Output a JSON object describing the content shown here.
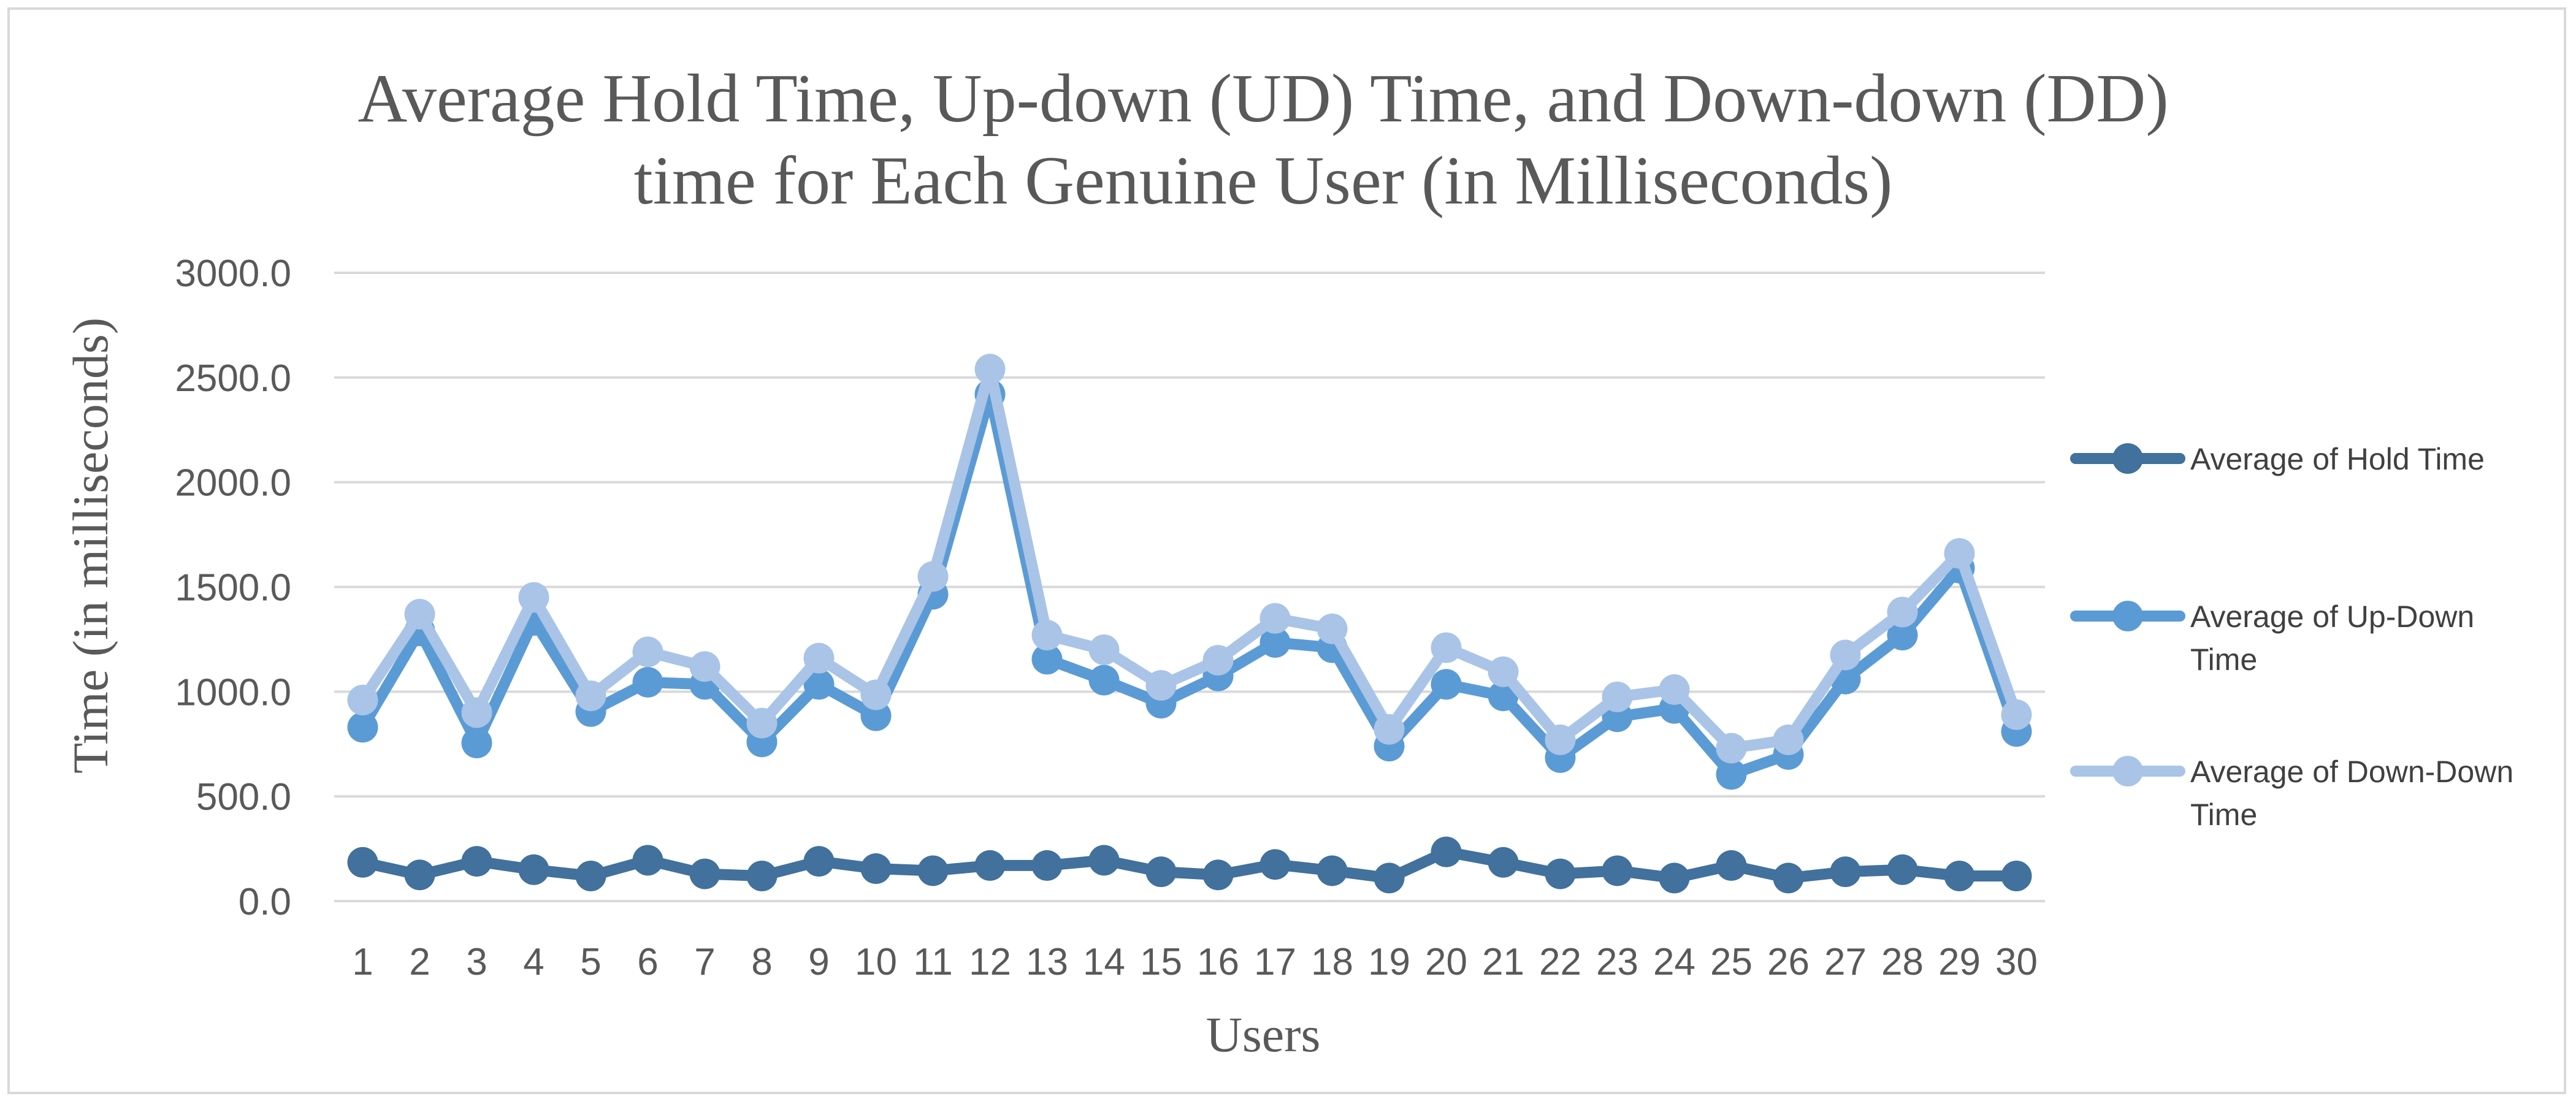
{
  "chart_data": {
    "type": "line",
    "title_lines": [
      "Average Hold Time, Up-down (UD) Time, and Down-down (DD)",
      "time for Each Genuine User (in Milliseconds)"
    ],
    "xlabel": "Users",
    "ylabel": "Time (in milliseconds)",
    "ylim": [
      0,
      3000
    ],
    "y_ticks": [
      "0.0",
      "500.0",
      "1000.0",
      "1500.0",
      "2000.0",
      "2500.0",
      "3000.0"
    ],
    "categories": [
      "1",
      "2",
      "3",
      "4",
      "5",
      "6",
      "7",
      "8",
      "9",
      "10",
      "11",
      "12",
      "13",
      "14",
      "15",
      "16",
      "17",
      "18",
      "19",
      "20",
      "21",
      "22",
      "23",
      "24",
      "25",
      "26",
      "27",
      "28",
      "29",
      "30"
    ],
    "grid": true,
    "legend_position": "right",
    "series": [
      {
        "name": "Average of Hold Time",
        "color": "#41719c",
        "values": [
          185,
          125,
          190,
          150,
          120,
          195,
          130,
          120,
          190,
          155,
          145,
          170,
          170,
          195,
          140,
          125,
          175,
          145,
          110,
          235,
          185,
          130,
          145,
          110,
          170,
          110,
          140,
          150,
          120,
          120
        ]
      },
      {
        "name": "Average of Up-Down Time",
        "color": "#5b9bd5",
        "values": [
          830,
          1290,
          755,
          1340,
          905,
          1045,
          1035,
          760,
          1035,
          885,
          1465,
          2420,
          1155,
          1055,
          945,
          1075,
          1235,
          1210,
          740,
          1035,
          980,
          685,
          880,
          920,
          605,
          700,
          1060,
          1270,
          1590,
          810
        ]
      },
      {
        "name": "Average of Down-Down Time",
        "color": "#a9c4e6",
        "values": [
          960,
          1370,
          900,
          1450,
          980,
          1190,
          1120,
          850,
          1160,
          985,
          1550,
          2540,
          1270,
          1200,
          1030,
          1150,
          1350,
          1300,
          820,
          1210,
          1095,
          770,
          975,
          1010,
          730,
          770,
          1175,
          1380,
          1660,
          890
        ]
      }
    ]
  }
}
